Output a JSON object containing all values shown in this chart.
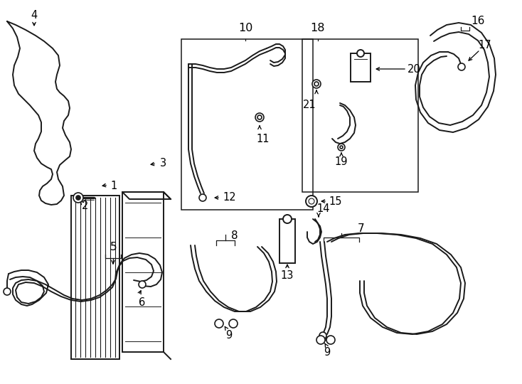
{
  "background_color": "#ffffff",
  "line_color": "#1a1a1a",
  "line_width": 1.4,
  "label_fontsize": 10.5,
  "fig_w": 7.34,
  "fig_h": 5.4,
  "dpi": 100
}
